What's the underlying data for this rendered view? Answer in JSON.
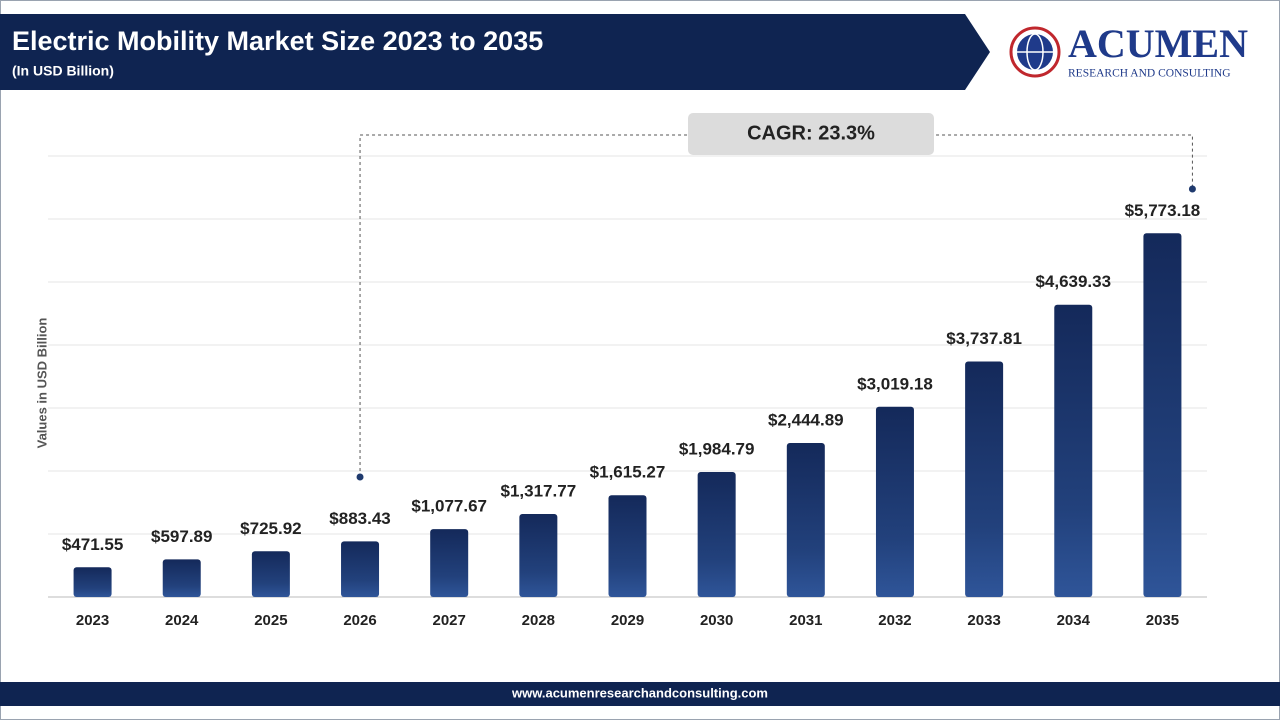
{
  "chart_data": {
    "type": "bar",
    "title": "Electric Mobility Market Size 2023 to 2035",
    "subtitle": "(In USD Billion)",
    "y_label": "Values in USD Billion",
    "categories": [
      "2023",
      "2024",
      "2025",
      "2026",
      "2027",
      "2028",
      "2029",
      "2030",
      "2031",
      "2032",
      "2033",
      "2034",
      "2035"
    ],
    "values": [
      471.55,
      597.89,
      725.92,
      883.43,
      1077.67,
      1317.77,
      1615.27,
      1984.79,
      2444.89,
      3019.18,
      3737.81,
      4639.33,
      5773.18
    ],
    "value_labels": [
      "$471.55",
      "$597.89",
      "$725.92",
      "$883.43",
      "$1,077.67",
      "$1,317.77",
      "$1,615.27",
      "$1,984.79",
      "$2,444.89",
      "$3,019.18",
      "$3,737.81",
      "$4,639.33",
      "$5,773.18"
    ],
    "color": "#1f3a6e",
    "ylim": [
      0,
      7000
    ],
    "grid": true,
    "annotation": "CAGR: 23.3%"
  },
  "logo": {
    "name": "ACUMEN",
    "tagline": "RESEARCH AND CONSULTING"
  },
  "footer": "www.acumenresearchandconsulting.com"
}
